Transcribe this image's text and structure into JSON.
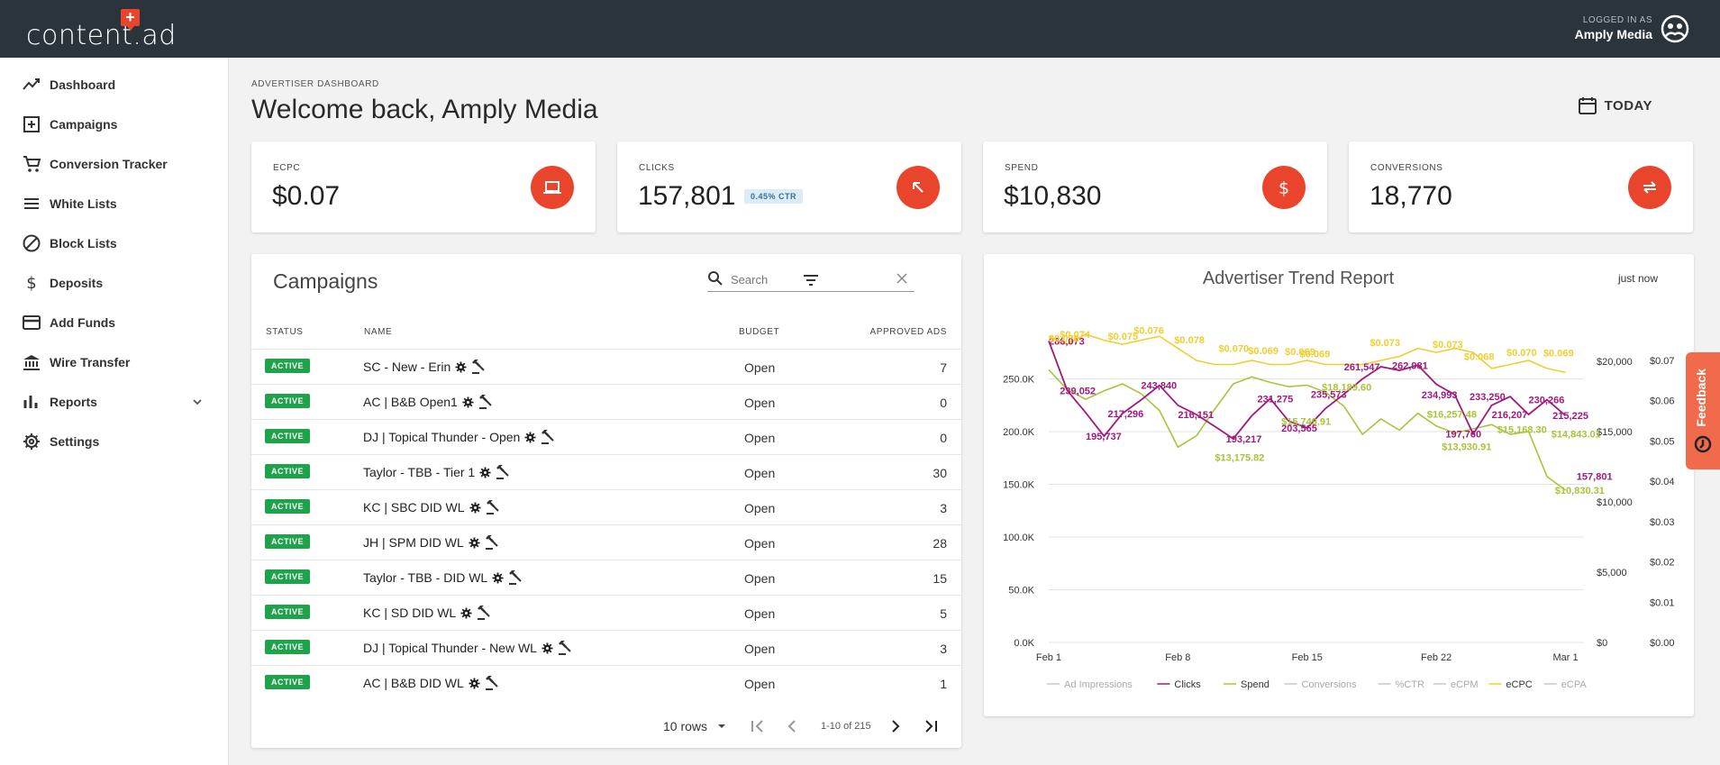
{
  "header": {
    "logo_text": "content.ad",
    "logo_mark": "+",
    "logged_in_label": "LOGGED IN AS",
    "account_name": "Amply Media"
  },
  "sidebar": {
    "items": [
      {
        "label": "Dashboard",
        "icon": "trend-icon"
      },
      {
        "label": "Campaigns",
        "icon": "add-box-icon"
      },
      {
        "label": "Conversion Tracker",
        "icon": "cart-icon"
      },
      {
        "label": "White Lists",
        "icon": "list-icon"
      },
      {
        "label": "Block Lists",
        "icon": "block-icon"
      },
      {
        "label": "Deposits",
        "icon": "dollar-icon"
      },
      {
        "label": "Add Funds",
        "icon": "credit-card-icon"
      },
      {
        "label": "Wire Transfer",
        "icon": "bank-icon"
      },
      {
        "label": "Reports",
        "icon": "bar-chart-icon"
      },
      {
        "label": "Settings",
        "icon": "gear-icon"
      }
    ]
  },
  "page": {
    "breadcrumb": "ADVERTISER DASHBOARD",
    "title": "Welcome back, Amply Media",
    "date_button": "TODAY"
  },
  "stats": [
    {
      "label": "ECPC",
      "value": "$0.07",
      "icon": "laptop-icon"
    },
    {
      "label": "CLICKS",
      "value": "157,801",
      "badge": "0.45% CTR",
      "icon": "cursor-arrow-icon"
    },
    {
      "label": "SPEND",
      "value": "$10,830",
      "icon": "dollar-icon"
    },
    {
      "label": "CONVERSIONS",
      "value": "18,770",
      "icon": "swap-icon"
    }
  ],
  "campaigns": {
    "title": "Campaigns",
    "search_placeholder": "Search",
    "columns": {
      "status": "STATUS",
      "name": "NAME",
      "budget": "BUDGET",
      "approved": "APPROVED ADS"
    },
    "rows": [
      {
        "status": "ACTIVE",
        "name": "SC - New - Erin",
        "budget": "Open",
        "approved": "7"
      },
      {
        "status": "ACTIVE",
        "name": "AC | B&B Open1",
        "budget": "Open",
        "approved": "0"
      },
      {
        "status": "ACTIVE",
        "name": "DJ | Topical Thunder - Open",
        "budget": "Open",
        "approved": "0"
      },
      {
        "status": "ACTIVE",
        "name": "Taylor - TBB - Tier 1",
        "budget": "Open",
        "approved": "30"
      },
      {
        "status": "ACTIVE",
        "name": "KC | SBC DID WL",
        "budget": "Open",
        "approved": "3"
      },
      {
        "status": "ACTIVE",
        "name": "JH | SPM DID WL",
        "budget": "Open",
        "approved": "28"
      },
      {
        "status": "ACTIVE",
        "name": "Taylor - TBB - DID WL",
        "budget": "Open",
        "approved": "15"
      },
      {
        "status": "ACTIVE",
        "name": "KC | SD DID WL",
        "budget": "Open",
        "approved": "5"
      },
      {
        "status": "ACTIVE",
        "name": "DJ | Topical Thunder - New WL",
        "budget": "Open",
        "approved": "3"
      },
      {
        "status": "ACTIVE",
        "name": "AC | B&B DID WL",
        "budget": "Open",
        "approved": "1"
      }
    ],
    "pager": {
      "rows_per_page": "10 rows",
      "range": "1-10 of 215"
    }
  },
  "feedback_label": "Feedback",
  "chart_data": {
    "type": "line",
    "title": "Advertiser Trend Report",
    "timestamp": "just now",
    "x_ticks": [
      "Feb 1",
      "Feb 8",
      "Feb 15",
      "Feb 22",
      "Mar 1"
    ],
    "y_left": {
      "ticks": [
        "0.0K",
        "50.0K",
        "100.0K",
        "150.0K",
        "200.0K",
        "250.0K"
      ],
      "range": [
        0,
        300000
      ]
    },
    "y_mid": {
      "ticks": [
        "$0",
        "$5,000",
        "$10,000",
        "$15,000",
        "$20,000"
      ],
      "range": [
        0,
        22500
      ]
    },
    "y_right": {
      "ticks": [
        "$0.00",
        "$0.01",
        "$0.02",
        "$0.03",
        "$0.04",
        "$0.05",
        "$0.06",
        "$0.07"
      ],
      "range": [
        0,
        0.0785
      ]
    },
    "legend": [
      {
        "name": "Ad Impressions",
        "color": "#c8c8c8"
      },
      {
        "name": "Clicks",
        "color": "#a0197d"
      },
      {
        "name": "Spend",
        "color": "#a8c43a"
      },
      {
        "name": "Conversions",
        "color": "#c8c8c8"
      },
      {
        "name": "%CTR",
        "color": "#c8c8c8"
      },
      {
        "name": "eCPM",
        "color": "#c8c8c8"
      },
      {
        "name": "eCPC",
        "color": "#f2cd30"
      },
      {
        "name": "eCPA",
        "color": "#c8c8c8"
      }
    ],
    "series": [
      {
        "name": "Clicks",
        "axis": "left",
        "color": "#a0197d",
        "x": [
          0,
          1,
          2,
          3,
          4,
          5,
          6,
          7,
          8,
          9,
          10,
          11,
          12,
          13,
          14,
          15,
          16,
          17,
          18,
          19,
          20,
          21,
          22,
          23,
          24,
          25,
          26,
          27,
          28,
          29
        ],
        "values": [
          286073,
          239052,
          195737,
          217296,
          243840,
          216151,
          193217,
          231275,
          203565,
          235573,
          261547,
          262981,
          234993,
          197760,
          233250,
          216207,
          230266,
          215225,
          157801,
          null,
          null,
          null,
          null,
          null,
          null,
          null,
          null,
          null,
          null,
          null
        ],
        "labels": [
          "286,073",
          "239,052",
          "195,737",
          "217,296",
          "243,840",
          "216,151",
          "193,217",
          "231,275",
          "203,565",
          "235,573",
          "261,547",
          "262,981",
          "234,993",
          "197,760",
          "233,250",
          "216,207",
          "230,266",
          "215,225",
          "157,801"
        ],
        "label_x": [
          0,
          0.6,
          2,
          3.2,
          5,
          7,
          9.6,
          11.3,
          12.6,
          14.2,
          16,
          18.6,
          20.2,
          21.5,
          22.8,
          24,
          26,
          27.3,
          28.6
        ]
      },
      {
        "name": "Spend",
        "color": "#a8c43a",
        "axis": "mid",
        "label_values": [
          "$13,175.82",
          "$15,749.91",
          "$18,189.60",
          "$16,257.48",
          "$13,930.91",
          "$15,168.30",
          "$14,843.01",
          "$10,830.31"
        ]
      },
      {
        "name": "eCPC",
        "color": "#f2cd30",
        "axis": "right",
        "label_values": [
          "$0.076",
          "$0.074",
          "$0.075",
          "$0.076",
          "$0.078",
          "$0.070",
          "$0.069",
          "$0.069",
          "$0.069",
          "$0.073",
          "$0.073",
          "$0.068",
          "$0.070",
          "$0.069"
        ]
      }
    ]
  }
}
